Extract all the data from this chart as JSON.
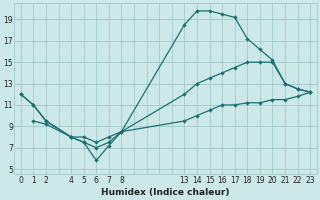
{
  "xlabel": "Humidex (Indice chaleur)",
  "bg_color": "#cce8e8",
  "grid_color": "#aacfcf",
  "line_color": "#1a7070",
  "line1": {
    "x": [
      0,
      1,
      2,
      4,
      5,
      6,
      7,
      8,
      13,
      14,
      15,
      16,
      17,
      18,
      19,
      20,
      21,
      22,
      23
    ],
    "y": [
      12,
      11,
      9.5,
      8,
      7.5,
      7,
      7.5,
      8.5,
      18.5,
      19.8,
      19.8,
      19.5,
      19.2,
      17.2,
      16.2,
      15.2,
      13,
      12.5,
      12.2
    ]
  },
  "line2": {
    "x": [
      0,
      1,
      2,
      4,
      5,
      6,
      7,
      8,
      13,
      14,
      15,
      16,
      17,
      18,
      19,
      20,
      21,
      22,
      23
    ],
    "y": [
      12,
      11,
      9.5,
      8,
      8,
      7.5,
      8,
      8.5,
      12,
      13,
      13.5,
      14,
      14.5,
      15,
      15,
      15,
      13,
      12.5,
      12.2
    ]
  },
  "line3": {
    "x": [
      1,
      2,
      4,
      5,
      6,
      7,
      8,
      13,
      14,
      15,
      16,
      17,
      18,
      19,
      20,
      21,
      22,
      23
    ],
    "y": [
      9.5,
      9.2,
      8,
      7.5,
      5.8,
      7.2,
      8.5,
      9.5,
      10,
      10.5,
      11,
      11,
      11.2,
      11.2,
      11.5,
      11.5,
      11.8,
      12.2
    ]
  },
  "xlim": [
    -0.5,
    23.5
  ],
  "ylim": [
    4.5,
    20.5
  ],
  "xticks_all": [
    0,
    1,
    2,
    3,
    4,
    5,
    6,
    7,
    8,
    9,
    10,
    11,
    12,
    13,
    14,
    15,
    16,
    17,
    18,
    19,
    20,
    21,
    22,
    23
  ],
  "xtick_labels": {
    "0": "0",
    "1": "1",
    "2": "2",
    "4": "4",
    "5": "5",
    "6": "6",
    "7": "7",
    "8": "8",
    "13": "13",
    "14": "14",
    "15": "15",
    "16": "16",
    "17": "17",
    "18": "18",
    "19": "19",
    "20": "20",
    "21": "21",
    "22": "22",
    "23": "23"
  },
  "yticks": [
    5,
    7,
    9,
    11,
    13,
    15,
    17,
    19
  ],
  "tick_fontsize": 5.5,
  "xlabel_fontsize": 6.5
}
